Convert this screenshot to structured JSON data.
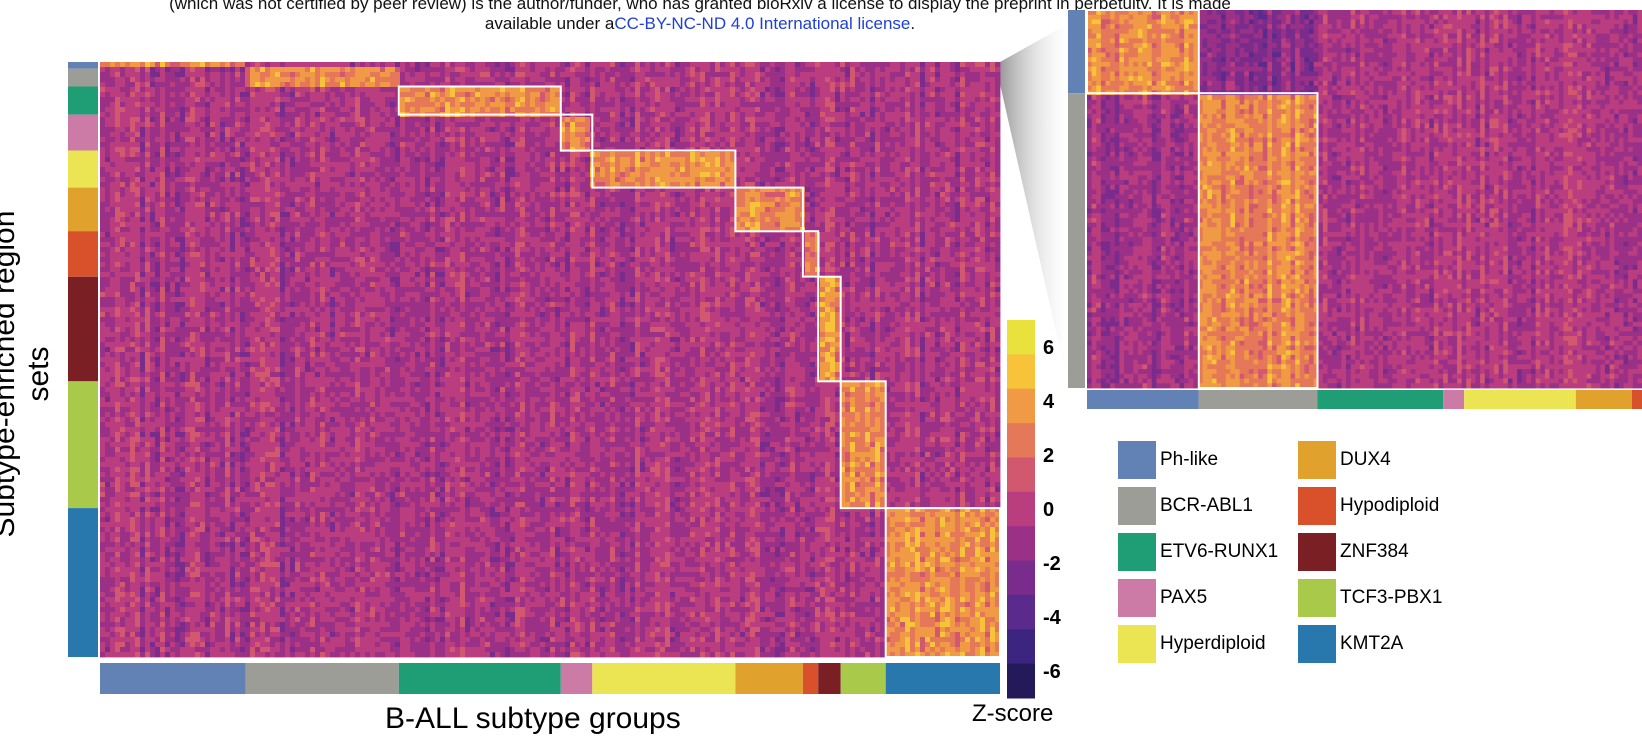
{
  "notice": {
    "line1_prefix": "(which was not certified by peer review) is the author/funder, who has granted bioRxiv a license to display the preprint in perpetuity. It is made",
    "line2_prefix": "available under a",
    "license_link": "CC-BY-NC-ND 4.0 International license",
    "line2_suffix": "."
  },
  "chart_data": {
    "type": "heatmap",
    "xlabel": "B-ALL subtype groups",
    "ylabel": "Subtype-enriched region sets",
    "colorbar_label": "Z-score",
    "colorbar_ticks": [
      "6",
      "4",
      "2",
      "0",
      "-2",
      "-4",
      "-6"
    ],
    "colorbar_range": [
      -7,
      7
    ],
    "colormap": [
      "#241a5a",
      "#3b2580",
      "#5a2a8c",
      "#7a2c8c",
      "#9b3087",
      "#ba3e7f",
      "#d25870",
      "#e47858",
      "#f19a45",
      "#f7c33a",
      "#eae23c"
    ],
    "subtypes": [
      {
        "name": "Ph-like",
        "color": "#6282b6",
        "column_weight": 0.162,
        "row_weight": 0.011
      },
      {
        "name": "BCR-ABL1",
        "color": "#9d9d98",
        "column_weight": 0.17,
        "row_weight": 0.03
      },
      {
        "name": "ETV6-RUNX1",
        "color": "#1f9e76",
        "column_weight": 0.18,
        "row_weight": 0.047
      },
      {
        "name": "PAX5",
        "color": "#cb7ba5",
        "column_weight": 0.035,
        "row_weight": 0.06
      },
      {
        "name": "Hyperdiploid",
        "color": "#ece553",
        "column_weight": 0.159,
        "row_weight": 0.062
      },
      {
        "name": "DUX4",
        "color": "#e1a22d",
        "column_weight": 0.075,
        "row_weight": 0.073
      },
      {
        "name": "Hypodiploid",
        "color": "#d8512b",
        "column_weight": 0.017,
        "row_weight": 0.076
      },
      {
        "name": "ZNF384",
        "color": "#7a1f24",
        "column_weight": 0.025,
        "row_weight": 0.175
      },
      {
        "name": "TCF3-PBX1",
        "color": "#a9c94a",
        "column_weight": 0.05,
        "row_weight": 0.212
      },
      {
        "name": "KMT2A",
        "color": "#2878ad",
        "column_weight": 0.127,
        "row_weight": 0.249
      }
    ],
    "zoom_inset": {
      "description_only_visual": true,
      "subtypes_shown": [
        "Ph-like",
        "BCR-ABL1"
      ],
      "column_weights": [
        0.16,
        0.17,
        0.18,
        0.03,
        0.16,
        0.08,
        0.015,
        0.025,
        0.05,
        0.125
      ],
      "row_weights": [
        0.22,
        0.78
      ]
    }
  },
  "legend": [
    {
      "name": "Ph-like",
      "color": "#6282b6"
    },
    {
      "name": "BCR-ABL1",
      "color": "#9d9d98"
    },
    {
      "name": "ETV6-RUNX1",
      "color": "#1f9e76"
    },
    {
      "name": "PAX5",
      "color": "#cb7ba5"
    },
    {
      "name": "Hyperdiploid",
      "color": "#ece553"
    },
    {
      "name": "DUX4",
      "color": "#e1a22d"
    },
    {
      "name": "Hypodiploid",
      "color": "#d8512b"
    },
    {
      "name": "ZNF384",
      "color": "#7a1f24"
    },
    {
      "name": "TCF3-PBX1",
      "color": "#a9c94a"
    },
    {
      "name": "KMT2A",
      "color": "#2878ad"
    }
  ]
}
